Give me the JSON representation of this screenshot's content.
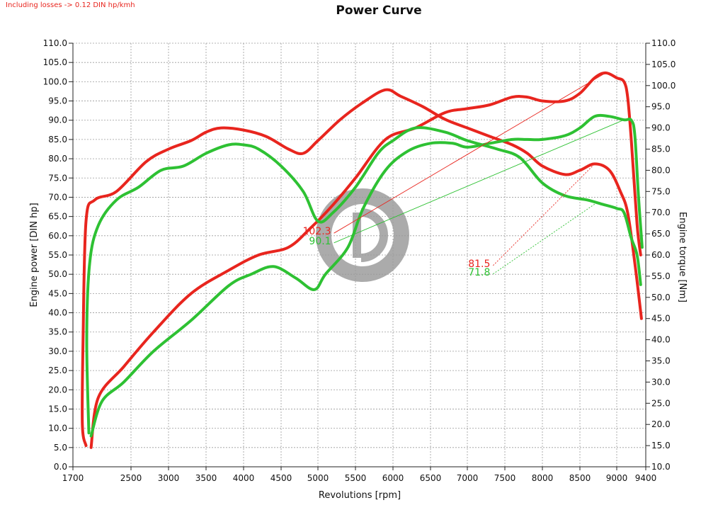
{
  "header": {
    "note": "Including losses -> 0.12 DIN hp/kmh",
    "title": "Power Curve"
  },
  "colors": {
    "tuned": "#e8251e",
    "stock": "#2ec133",
    "grid": "#9a9a9a",
    "watermark": "#9c9c9c"
  },
  "watermark": {
    "icon": "dyno-logo-icon"
  },
  "chart_data": {
    "type": "line",
    "title": "Power Curve",
    "xlabel": "Revolutions [rpm]",
    "ylabel": "Engine power [DIN hp]",
    "y2label": "Engine torque [Nm]",
    "xlim": [
      1700,
      9400
    ],
    "ylim": [
      0,
      110
    ],
    "y2lim": [
      10,
      110
    ],
    "x_ticks": [
      "1700",
      "2500",
      "3000",
      "3500",
      "4000",
      "4500",
      "5000",
      "5500",
      "6000",
      "6500",
      "7000",
      "7500",
      "8000",
      "8500",
      "9000",
      "9400"
    ],
    "y_ticks": [
      "0.0",
      "5.0",
      "10.0",
      "15.0",
      "20.0",
      "25.0",
      "30.0",
      "35.0",
      "40.0",
      "45.0",
      "50.0",
      "55.0",
      "60.0",
      "65.0",
      "70.0",
      "75.0",
      "80.0",
      "85.0",
      "90.0",
      "95.0",
      "100.0",
      "105.0",
      "110.0"
    ],
    "y2_ticks": [
      "10.0",
      "15.0",
      "20.0",
      "25.0",
      "30.0",
      "35.0",
      "40.0",
      "45.0",
      "50.0",
      "55.0",
      "60.0",
      "65.0",
      "70.0",
      "75.0",
      "80.0",
      "85.0",
      "90.0",
      "95.0",
      "100.0",
      "105.0",
      "110.0"
    ],
    "grid": true,
    "series": [
      {
        "name": "",
        "kind": "power",
        "axis": "left",
        "color": "#e8251e",
        "points": [
          [
            1950,
            5
          ],
          [
            2050,
            18
          ],
          [
            2400,
            26
          ],
          [
            2800,
            35
          ],
          [
            3300,
            45
          ],
          [
            3800,
            51
          ],
          [
            4200,
            55
          ],
          [
            4600,
            57
          ],
          [
            4900,
            62
          ],
          [
            5200,
            68
          ],
          [
            5500,
            75
          ],
          [
            5900,
            85
          ],
          [
            6300,
            88
          ],
          [
            6700,
            92
          ],
          [
            7000,
            93
          ],
          [
            7300,
            94
          ],
          [
            7600,
            96
          ],
          [
            7800,
            96
          ],
          [
            8000,
            95
          ],
          [
            8300,
            95
          ],
          [
            8500,
            97
          ],
          [
            8700,
            101
          ],
          [
            8850,
            102.3
          ],
          [
            9000,
            101
          ],
          [
            9100,
            100
          ],
          [
            9150,
            96
          ],
          [
            9200,
            85
          ],
          [
            9280,
            63
          ],
          [
            9330,
            55
          ]
        ]
      },
      {
        "name": "",
        "kind": "torque",
        "axis": "right",
        "color": "#e8251e",
        "points": [
          [
            1880,
            15
          ],
          [
            1830,
            20
          ],
          [
            1840,
            40
          ],
          [
            1880,
            68
          ],
          [
            2000,
            73
          ],
          [
            2300,
            75
          ],
          [
            2700,
            82
          ],
          [
            3000,
            85
          ],
          [
            3300,
            87
          ],
          [
            3500,
            89
          ],
          [
            3700,
            90
          ],
          [
            4000,
            89.5
          ],
          [
            4300,
            88
          ],
          [
            4600,
            85
          ],
          [
            4800,
            84
          ],
          [
            5000,
            87
          ],
          [
            5300,
            92
          ],
          [
            5600,
            96
          ],
          [
            5900,
            99
          ],
          [
            6100,
            97.5
          ],
          [
            6400,
            95
          ],
          [
            6700,
            92
          ],
          [
            7000,
            90
          ],
          [
            7300,
            88
          ],
          [
            7600,
            86
          ],
          [
            7800,
            84
          ],
          [
            8000,
            81
          ],
          [
            8300,
            79
          ],
          [
            8500,
            80
          ],
          [
            8700,
            81.5
          ],
          [
            8900,
            80
          ],
          [
            9050,
            75
          ],
          [
            9150,
            70
          ],
          [
            9250,
            58
          ],
          [
            9340,
            45
          ]
        ]
      },
      {
        "name": "",
        "kind": "power",
        "axis": "left",
        "color": "#2ec133",
        "points": [
          [
            1950,
            8
          ],
          [
            2100,
            17
          ],
          [
            2400,
            22
          ],
          [
            2800,
            30
          ],
          [
            3300,
            38
          ],
          [
            3800,
            47
          ],
          [
            4100,
            50
          ],
          [
            4400,
            52
          ],
          [
            4700,
            49
          ],
          [
            4950,
            46
          ],
          [
            5100,
            50
          ],
          [
            5400,
            57
          ],
          [
            5600,
            67
          ],
          [
            5900,
            77
          ],
          [
            6200,
            82
          ],
          [
            6500,
            84
          ],
          [
            6800,
            84
          ],
          [
            7000,
            83
          ],
          [
            7300,
            84
          ],
          [
            7600,
            85
          ],
          [
            7800,
            85
          ],
          [
            8000,
            85
          ],
          [
            8300,
            86
          ],
          [
            8500,
            88
          ],
          [
            8700,
            91
          ],
          [
            8900,
            91
          ],
          [
            9100,
            90.1
          ],
          [
            9200,
            90
          ],
          [
            9250,
            86
          ],
          [
            9300,
            70
          ],
          [
            9350,
            57
          ]
        ]
      },
      {
        "name": "",
        "kind": "torque",
        "axis": "right",
        "color": "#2ec133",
        "points": [
          [
            1920,
            18
          ],
          [
            1890,
            40
          ],
          [
            1930,
            58
          ],
          [
            2050,
            67
          ],
          [
            2300,
            73
          ],
          [
            2600,
            76
          ],
          [
            2900,
            80
          ],
          [
            3200,
            81
          ],
          [
            3500,
            84
          ],
          [
            3800,
            86
          ],
          [
            4000,
            86
          ],
          [
            4200,
            85
          ],
          [
            4500,
            81
          ],
          [
            4800,
            75
          ],
          [
            5000,
            68
          ],
          [
            5200,
            70
          ],
          [
            5500,
            76
          ],
          [
            5800,
            84
          ],
          [
            6000,
            87
          ],
          [
            6300,
            90
          ],
          [
            6700,
            89
          ],
          [
            7000,
            87
          ],
          [
            7400,
            85
          ],
          [
            7700,
            83
          ],
          [
            8000,
            77
          ],
          [
            8300,
            74
          ],
          [
            8600,
            73
          ],
          [
            8800,
            72
          ],
          [
            9000,
            71
          ],
          [
            9100,
            70
          ],
          [
            9200,
            64
          ],
          [
            9280,
            60
          ],
          [
            9330,
            53
          ]
        ]
      }
    ],
    "annotations": [
      {
        "label": "102.3",
        "color": "#e8251e",
        "anchor": [
          5100,
          60.3
        ],
        "target": [
          8850,
          102.3
        ],
        "style": "solid"
      },
      {
        "label": "90.1",
        "color": "#2ec133",
        "anchor": [
          5100,
          57.8
        ],
        "target": [
          9100,
          90.1
        ],
        "style": "solid"
      },
      {
        "label": "81.5",
        "color": "#e8251e",
        "anchor": [
          7230,
          51.9
        ],
        "target": [
          8700,
          81.5
        ],
        "style": "dotted",
        "axis": "right"
      },
      {
        "label": "71.8",
        "color": "#2ec133",
        "anchor": [
          7230,
          49.7
        ],
        "target": [
          8700,
          72
        ],
        "style": "dotted",
        "axis": "right"
      }
    ]
  }
}
